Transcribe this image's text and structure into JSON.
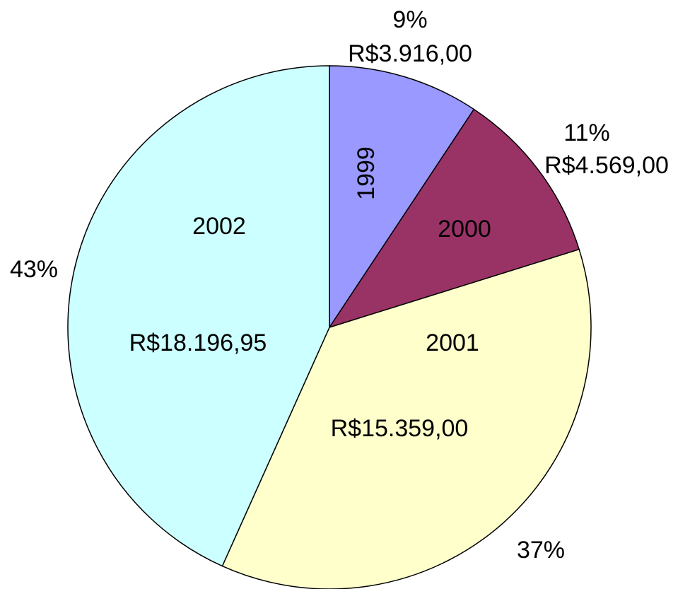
{
  "chart_data": {
    "type": "pie",
    "categories": [
      "1999",
      "2000",
      "2001",
      "2002"
    ],
    "values": [
      3916,
      4569,
      15359,
      18196.95
    ],
    "value_labels": [
      "R$3.916,00",
      "R$4.569,00",
      "R$15.359,00",
      "R$18.196,95"
    ],
    "percents": [
      {
        "value": 9,
        "label": "9%"
      },
      {
        "value": 11,
        "label": "11%"
      },
      {
        "value": 37,
        "label": "37%"
      },
      {
        "value": 43,
        "label": "43%"
      }
    ],
    "colors": [
      "#9999ff",
      "#993366",
      "#ffffcc",
      "#ccffff"
    ]
  }
}
